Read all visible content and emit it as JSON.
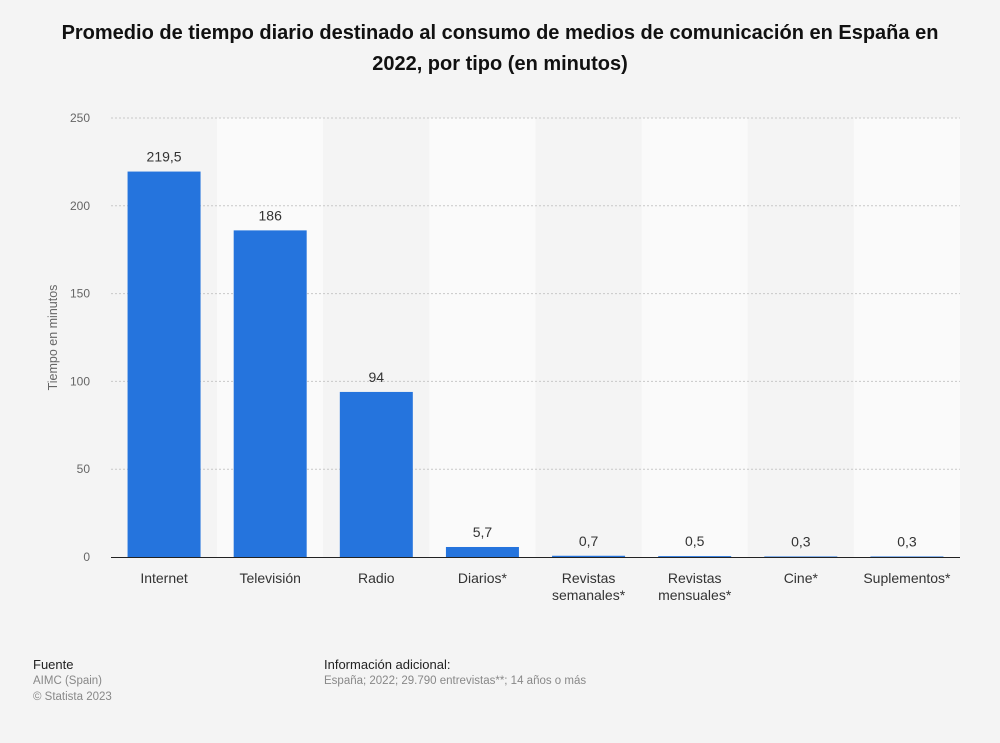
{
  "title": "Promedio de tiempo diario destinado al consumo de medios de comunicación en España en 2022, por tipo (en minutos)",
  "chart_data": {
    "type": "bar",
    "categories": [
      [
        "Internet"
      ],
      [
        "Televisión"
      ],
      [
        "Radio"
      ],
      [
        "Diarios*"
      ],
      [
        "Revistas",
        "semanales*"
      ],
      [
        "Revistas",
        "mensuales*"
      ],
      [
        "Cine*"
      ],
      [
        "Suplementos*"
      ]
    ],
    "values": [
      219.5,
      186,
      94,
      5.7,
      0.7,
      0.5,
      0.3,
      0.3
    ],
    "value_labels": [
      "219,5",
      "186",
      "94",
      "5,7",
      "0,7",
      "0,5",
      "0,3",
      "0,3"
    ],
    "ylabel": "Tiempo en minutos",
    "ylim": [
      0,
      250
    ],
    "yticks": [
      0,
      50,
      100,
      150,
      200,
      250
    ],
    "grid": true,
    "bar_color": "#2574dd"
  },
  "footer": {
    "source_head": "Fuente",
    "source_lines": [
      "AIMC (Spain)",
      "© Statista 2023"
    ],
    "info_head": "Información adicional:",
    "info_line": "España; 2022; 29.790 entrevistas**; 14 años o más"
  }
}
